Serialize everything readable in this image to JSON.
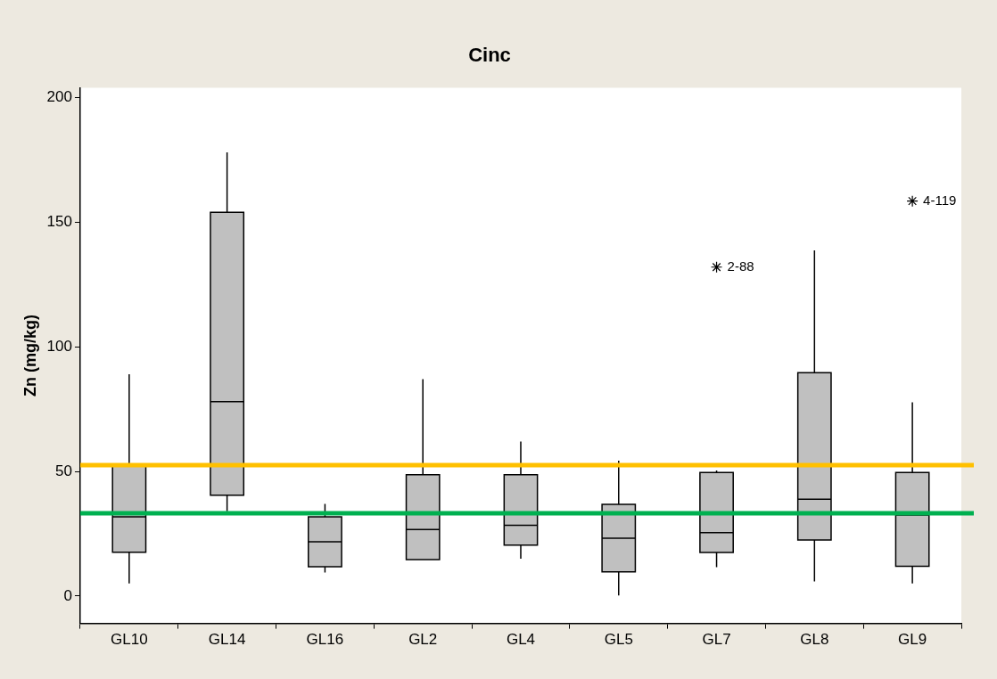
{
  "chart_data": {
    "type": "box",
    "title": "Cinc",
    "ylabel": "Zn (mg/kg)",
    "categories": [
      "GL10",
      "GL14",
      "GL16",
      "GL2",
      "GL4",
      "GL5",
      "GL7",
      "GL8",
      "GL9"
    ],
    "color": "#c0c0c0",
    "marker": "star",
    "boxes": [
      {
        "low": 5,
        "q1": 17.6,
        "median": 31.8,
        "q3": 53,
        "high": 89
      },
      {
        "low": 34,
        "q1": 40.4,
        "median": 78,
        "q3": 154,
        "high": 178
      },
      {
        "low": 9.4,
        "q1": 11.7,
        "median": 21.8,
        "q3": 31.8,
        "high": 37
      },
      {
        "low": 14.6,
        "q1": 14.6,
        "median": 26.7,
        "q3": 48.7,
        "high": 87
      },
      {
        "low": 15,
        "q1": 20.4,
        "median": 28.4,
        "q3": 48.7,
        "high": 62
      },
      {
        "low": 0.2,
        "q1": 9.7,
        "median": 23.2,
        "q3": 36.8,
        "high": 54.3
      },
      {
        "low": 11.6,
        "q1": 17.5,
        "median": 25.4,
        "q3": 49.6,
        "high": 50.4,
        "outliers": [
          132
        ]
      },
      {
        "low": 5.8,
        "q1": 22.5,
        "median": 38.8,
        "q3": 89.6,
        "high": 138.7
      },
      {
        "low": 5,
        "q1": 11.9,
        "median": 32.5,
        "q3": 49.6,
        "high": 77.7,
        "outliers": [
          158.5
        ]
      }
    ],
    "ylim": [
      -11,
      204
    ],
    "yticks": [
      0,
      50,
      100,
      150,
      200
    ],
    "ref_lines": [
      {
        "axis": "y",
        "value": 52.5,
        "color": "#ffc000"
      },
      {
        "axis": "y",
        "value": 33.2,
        "color": "#00b050"
      }
    ],
    "annotations": [
      "2-88",
      "4-119"
    ]
  }
}
